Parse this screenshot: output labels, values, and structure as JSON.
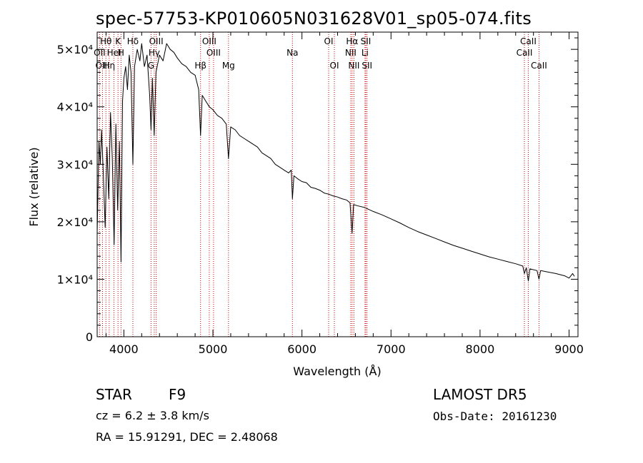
{
  "chart_data": {
    "type": "line",
    "title": "spec-57753-KP010605N031628V01_sp05-074.fits",
    "xlabel": "Wavelength (Å)",
    "ylabel": "Flux (relative)",
    "xlim": [
      3700,
      9100
    ],
    "ylim": [
      0,
      53000
    ],
    "x_ticks": [
      {
        "value": 4000,
        "label": "4000"
      },
      {
        "value": 5000,
        "label": "5000"
      },
      {
        "value": 6000,
        "label": "6000"
      },
      {
        "value": 7000,
        "label": "7000"
      },
      {
        "value": 8000,
        "label": "8000"
      },
      {
        "value": 9000,
        "label": "9000"
      }
    ],
    "y_ticks": [
      {
        "value": 0,
        "label": "0"
      },
      {
        "value": 10000,
        "label": "1×10⁴"
      },
      {
        "value": 20000,
        "label": "2×10⁴"
      },
      {
        "value": 30000,
        "label": "3×10⁴"
      },
      {
        "value": 40000,
        "label": "4×10⁴"
      },
      {
        "value": 50000,
        "label": "5×10⁴"
      }
    ],
    "grid": false,
    "line_color": "#000000",
    "marker_color": "#cc0000",
    "series": [
      {
        "points": [
          [
            3700,
            18000
          ],
          [
            3720,
            34000
          ],
          [
            3735,
            30000
          ],
          [
            3750,
            36000
          ],
          [
            3770,
            28000
          ],
          [
            3790,
            19000
          ],
          [
            3810,
            33000
          ],
          [
            3830,
            24000
          ],
          [
            3850,
            39000
          ],
          [
            3870,
            31000
          ],
          [
            3890,
            16000
          ],
          [
            3910,
            37000
          ],
          [
            3930,
            22000
          ],
          [
            3950,
            34000
          ],
          [
            3968,
            13000
          ],
          [
            3985,
            41000
          ],
          [
            4000,
            45000
          ],
          [
            4020,
            47000
          ],
          [
            4040,
            43000
          ],
          [
            4060,
            49000
          ],
          [
            4080,
            46000
          ],
          [
            4101,
            30000
          ],
          [
            4120,
            47000
          ],
          [
            4150,
            50000
          ],
          [
            4180,
            48000
          ],
          [
            4200,
            51000
          ],
          [
            4230,
            47000
          ],
          [
            4260,
            49000
          ],
          [
            4290,
            42000
          ],
          [
            4305,
            36000
          ],
          [
            4320,
            45000
          ],
          [
            4340,
            35000
          ],
          [
            4360,
            46000
          ],
          [
            4400,
            49000
          ],
          [
            4440,
            48000
          ],
          [
            4480,
            51000
          ],
          [
            4520,
            50000
          ],
          [
            4560,
            49500
          ],
          [
            4600,
            48500
          ],
          [
            4650,
            47500
          ],
          [
            4700,
            47000
          ],
          [
            4750,
            46000
          ],
          [
            4800,
            45500
          ],
          [
            4840,
            43000
          ],
          [
            4861,
            35000
          ],
          [
            4880,
            42000
          ],
          [
            4920,
            41000
          ],
          [
            4960,
            40000
          ],
          [
            5000,
            39500
          ],
          [
            5050,
            38500
          ],
          [
            5100,
            38000
          ],
          [
            5150,
            37000
          ],
          [
            5175,
            31000
          ],
          [
            5200,
            36500
          ],
          [
            5250,
            36000
          ],
          [
            5300,
            35000
          ],
          [
            5350,
            34500
          ],
          [
            5400,
            34000
          ],
          [
            5450,
            33500
          ],
          [
            5500,
            33000
          ],
          [
            5550,
            32000
          ],
          [
            5600,
            31500
          ],
          [
            5650,
            31000
          ],
          [
            5700,
            30000
          ],
          [
            5750,
            29500
          ],
          [
            5800,
            29000
          ],
          [
            5850,
            28500
          ],
          [
            5880,
            29000
          ],
          [
            5893,
            24000
          ],
          [
            5910,
            28000
          ],
          [
            5950,
            27500
          ],
          [
            6000,
            27000
          ],
          [
            6050,
            26800
          ],
          [
            6100,
            26000
          ],
          [
            6150,
            25800
          ],
          [
            6200,
            25500
          ],
          [
            6250,
            25000
          ],
          [
            6300,
            24800
          ],
          [
            6350,
            24500
          ],
          [
            6400,
            24300
          ],
          [
            6450,
            24000
          ],
          [
            6500,
            23800
          ],
          [
            6540,
            23300
          ],
          [
            6563,
            18000
          ],
          [
            6580,
            23000
          ],
          [
            6620,
            22800
          ],
          [
            6700,
            22500
          ],
          [
            6800,
            21800
          ],
          [
            6900,
            21200
          ],
          [
            7000,
            20500
          ],
          [
            7100,
            19800
          ],
          [
            7200,
            19000
          ],
          [
            7300,
            18300
          ],
          [
            7400,
            17700
          ],
          [
            7500,
            17100
          ],
          [
            7600,
            16500
          ],
          [
            7700,
            15900
          ],
          [
            7800,
            15400
          ],
          [
            7900,
            14900
          ],
          [
            8000,
            14400
          ],
          [
            8100,
            13900
          ],
          [
            8200,
            13500
          ],
          [
            8300,
            13100
          ],
          [
            8400,
            12700
          ],
          [
            8480,
            12300
          ],
          [
            8498,
            11000
          ],
          [
            8520,
            12000
          ],
          [
            8542,
            9700
          ],
          [
            8560,
            11800
          ],
          [
            8640,
            11500
          ],
          [
            8662,
            10000
          ],
          [
            8680,
            11500
          ],
          [
            8750,
            11300
          ],
          [
            8850,
            11000
          ],
          [
            8950,
            10600
          ],
          [
            9000,
            10200
          ],
          [
            9040,
            11000
          ],
          [
            9060,
            10500
          ]
        ]
      }
    ],
    "lines": [
      {
        "name": "Hθ",
        "x": 3798,
        "row": 1
      },
      {
        "name": "OII",
        "x": 3727,
        "row": 2
      },
      {
        "name": "HeI",
        "x": 3889,
        "row": 2
      },
      {
        "name": "OIII",
        "x": 3760,
        "row": 3
      },
      {
        "name": "Hη",
        "x": 3835,
        "row": 3
      },
      {
        "name": "K",
        "x": 3934,
        "row": 1
      },
      {
        "name": "H",
        "x": 3968,
        "row": 2
      },
      {
        "name": "Hδ",
        "x": 4101,
        "row": 1
      },
      {
        "name": "G",
        "x": 4305,
        "row": 3
      },
      {
        "name": "OIII",
        "x": 4363,
        "row": 1
      },
      {
        "name": "Hγ",
        "x": 4341,
        "row": 2
      },
      {
        "name": "Hβ",
        "x": 4861,
        "row": 3
      },
      {
        "name": "OIII",
        "x": 4959,
        "row": 1
      },
      {
        "name": "OIII",
        "x": 5007,
        "row": 2
      },
      {
        "name": "Mg",
        "x": 5175,
        "row": 3
      },
      {
        "name": "Na",
        "x": 5893,
        "row": 2
      },
      {
        "name": "OI",
        "x": 6300,
        "row": 1
      },
      {
        "name": "OI",
        "x": 6364,
        "row": 3
      },
      {
        "name": "Hα",
        "x": 6563,
        "row": 1
      },
      {
        "name": "NII",
        "x": 6548,
        "row": 2
      },
      {
        "name": "NII",
        "x": 6584,
        "row": 3
      },
      {
        "name": "SII",
        "x": 6717,
        "row": 1
      },
      {
        "name": "Li",
        "x": 6708,
        "row": 2
      },
      {
        "name": "SII",
        "x": 6731,
        "row": 3
      },
      {
        "name": "CaII",
        "x": 8542,
        "row": 1
      },
      {
        "name": "CaII",
        "x": 8498,
        "row": 2
      },
      {
        "name": "CaII",
        "x": 8662,
        "row": 3
      }
    ]
  },
  "info": {
    "object_class": "STAR",
    "subclass": "F9",
    "survey": "LAMOST DR5",
    "cz": "cz = 6.2 ± 3.8 km/s",
    "obs_date": "Obs-Date: 20161230",
    "coords": "RA =  15.91291, DEC =   2.48068"
  }
}
